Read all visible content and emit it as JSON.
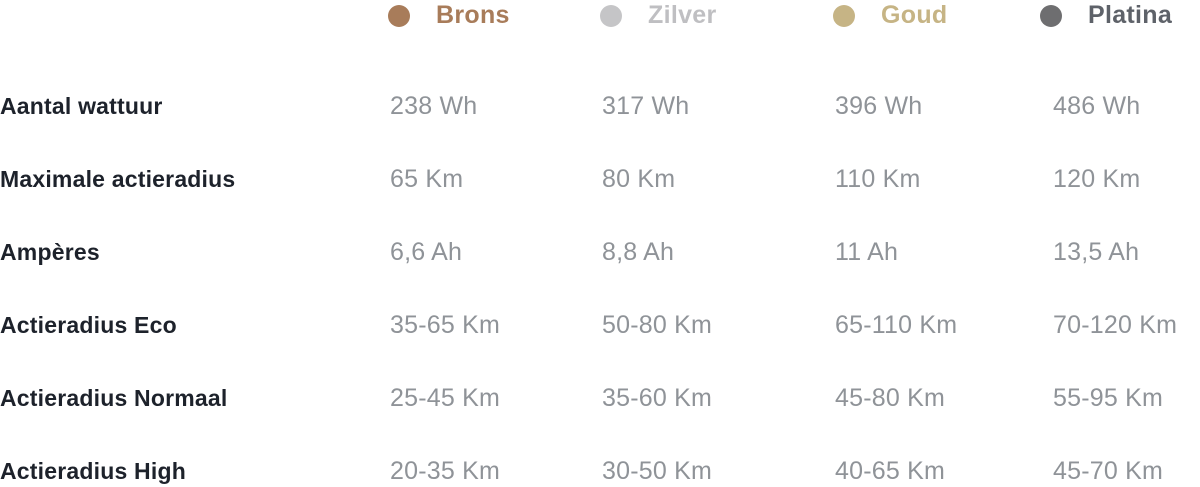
{
  "table": {
    "tiers": [
      {
        "name": "Brons",
        "dot_color": "#a87c5a",
        "text_color": "#a87c5a"
      },
      {
        "name": "Zilver",
        "dot_color": "#c5c5c7",
        "text_color": "#bfbfc2"
      },
      {
        "name": "Goud",
        "dot_color": "#c6b485",
        "text_color": "#c6b485"
      },
      {
        "name": "Platina",
        "dot_color": "#6e6e70",
        "text_color": "#5e6269"
      }
    ],
    "rows": [
      {
        "label": "Aantal wattuur",
        "values": [
          "238 Wh",
          "317 Wh",
          "396 Wh",
          "486 Wh"
        ]
      },
      {
        "label": "Maximale actieradius",
        "values": [
          "65 Km",
          "80 Km",
          "110 Km",
          "120 Km"
        ]
      },
      {
        "label": "Ampères",
        "values": [
          "6,6 Ah",
          "8,8 Ah",
          "11 Ah",
          "13,5 Ah"
        ]
      },
      {
        "label": "Actieradius Eco",
        "values": [
          "35-65 Km",
          "50-80 Km",
          "65-110 Km",
          "70-120 Km"
        ]
      },
      {
        "label": "Actieradius Normaal",
        "values": [
          "25-45 Km",
          "35-60 Km",
          "45-80 Km",
          "55-95 Km"
        ]
      },
      {
        "label": "Actieradius High",
        "values": [
          "20-35 Km",
          "30-50 Km",
          "40-65 Km",
          "45-70 Km"
        ]
      }
    ]
  },
  "colors": {
    "label_text": "#1d222b",
    "value_text": "#8f9398",
    "background": "#ffffff"
  }
}
